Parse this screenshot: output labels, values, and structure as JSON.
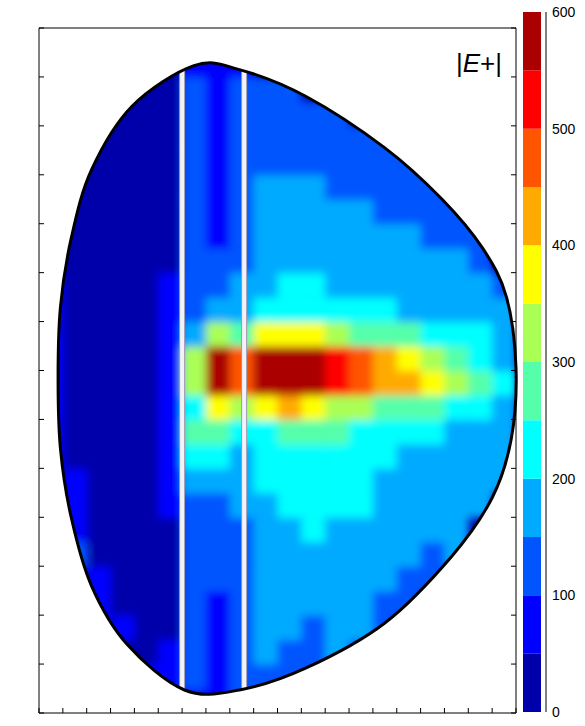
{
  "chart_data": {
    "type": "heatmap",
    "title": "|E+|",
    "tick_labels": false,
    "xlim": [
      0,
      20
    ],
    "xticks": [
      0,
      1,
      2,
      3,
      4,
      5,
      6,
      7,
      8,
      9,
      10,
      11,
      12,
      13,
      14,
      15,
      16,
      17,
      18,
      19,
      20
    ],
    "ylim": [
      0,
      14
    ],
    "yticks": [
      0,
      1,
      2,
      3,
      4,
      5,
      6,
      7,
      8,
      9,
      10,
      11,
      12,
      13,
      14
    ],
    "cells": {
      "x": [
        0,
        1,
        2,
        3,
        4,
        5,
        6,
        7,
        8,
        9,
        10,
        11,
        12,
        13,
        14,
        15,
        16,
        17,
        18,
        19,
        20
      ],
      "y": [
        0,
        0.5,
        1,
        1.5,
        2,
        2.5,
        3,
        3.5,
        4,
        4.5,
        5,
        5.5,
        6,
        6.5,
        7,
        7.5,
        8,
        8.5,
        9,
        9.5,
        10,
        10.5,
        11,
        11.5,
        12,
        12.5,
        13,
        13.5,
        14
      ],
      "values": [
        [
          null,
          null,
          null,
          null,
          null,
          60,
          90,
          80,
          100,
          130,
          null,
          null,
          null,
          null,
          null,
          null,
          null,
          null,
          null,
          null
        ],
        [
          null,
          null,
          null,
          null,
          50,
          50,
          100,
          80,
          110,
          140,
          130,
          120,
          null,
          null,
          null,
          null,
          null,
          null,
          null,
          null
        ],
        [
          null,
          null,
          null,
          40,
          45,
          50,
          100,
          80,
          120,
          150,
          140,
          130,
          150,
          140,
          null,
          null,
          null,
          null,
          null,
          null
        ],
        [
          null,
          null,
          null,
          60,
          40,
          45,
          110,
          90,
          130,
          160,
          150,
          140,
          160,
          150,
          130,
          null,
          null,
          null,
          null,
          null
        ],
        [
          null,
          null,
          80,
          40,
          40,
          45,
          110,
          90,
          120,
          170,
          160,
          150,
          170,
          160,
          140,
          130,
          null,
          null,
          null,
          null
        ],
        [
          null,
          null,
          90,
          40,
          40,
          45,
          110,
          100,
          130,
          160,
          180,
          170,
          180,
          170,
          150,
          140,
          130,
          null,
          null,
          null
        ],
        [
          null,
          100,
          40,
          40,
          40,
          45,
          120,
          100,
          140,
          170,
          190,
          180,
          190,
          180,
          160,
          150,
          140,
          150,
          null,
          null
        ],
        [
          null,
          90,
          40,
          35,
          40,
          45,
          120,
          110,
          140,
          180,
          190,
          200,
          190,
          190,
          170,
          160,
          150,
          160,
          null,
          null
        ],
        [
          null,
          80,
          40,
          35,
          40,
          50,
          130,
          120,
          150,
          190,
          200,
          210,
          200,
          200,
          180,
          170,
          160,
          170,
          150,
          null
        ],
        [
          null,
          70,
          40,
          35,
          40,
          50,
          150,
          150,
          160,
          200,
          220,
          220,
          210,
          210,
          190,
          180,
          170,
          170,
          160,
          150
        ],
        [
          60,
          40,
          35,
          35,
          40,
          50,
          200,
          220,
          180,
          210,
          230,
          230,
          220,
          220,
          200,
          190,
          180,
          170,
          170,
          150
        ],
        [
          50,
          40,
          35,
          35,
          40,
          50,
          280,
          280,
          200,
          230,
          260,
          260,
          250,
          240,
          220,
          210,
          200,
          190,
          180,
          160
        ],
        [
          50,
          40,
          35,
          35,
          40,
          60,
          200,
          350,
          300,
          380,
          400,
          370,
          330,
          300,
          280,
          260,
          250,
          230,
          210,
          180
        ],
        [
          50,
          40,
          35,
          35,
          40,
          70,
          320,
          650,
          450,
          650,
          650,
          600,
          520,
          470,
          430,
          400,
          360,
          300,
          250,
          200
        ],
        [
          50,
          40,
          35,
          35,
          40,
          70,
          320,
          650,
          450,
          650,
          650,
          580,
          500,
          450,
          420,
          380,
          340,
          290,
          240,
          190
        ],
        [
          50,
          40,
          35,
          35,
          40,
          60,
          150,
          300,
          280,
          350,
          380,
          350,
          310,
          290,
          270,
          250,
          240,
          220,
          200,
          170
        ],
        [
          50,
          40,
          35,
          35,
          40,
          50,
          120,
          150,
          180,
          220,
          240,
          230,
          220,
          210,
          200,
          190,
          180,
          170,
          160,
          150
        ],
        [
          55,
          40,
          35,
          35,
          40,
          50,
          110,
          110,
          150,
          190,
          200,
          200,
          190,
          180,
          170,
          170,
          160,
          160,
          150,
          140
        ],
        [
          null,
          40,
          35,
          35,
          40,
          45,
          100,
          100,
          130,
          170,
          180,
          180,
          170,
          170,
          160,
          160,
          150,
          150,
          140,
          null
        ],
        [
          null,
          40,
          35,
          35,
          40,
          45,
          100,
          95,
          130,
          160,
          170,
          170,
          160,
          160,
          150,
          150,
          140,
          140,
          130,
          null
        ],
        [
          null,
          40,
          35,
          35,
          40,
          45,
          100,
          90,
          120,
          150,
          160,
          160,
          150,
          150,
          140,
          140,
          130,
          130,
          null,
          null
        ],
        [
          null,
          40,
          35,
          35,
          40,
          45,
          100,
          90,
          120,
          150,
          150,
          150,
          140,
          140,
          130,
          130,
          120,
          null,
          null,
          null
        ],
        [
          null,
          null,
          35,
          35,
          40,
          45,
          100,
          90,
          110,
          140,
          140,
          140,
          130,
          130,
          120,
          120,
          null,
          null,
          null,
          null
        ],
        [
          null,
          null,
          35,
          35,
          40,
          45,
          100,
          90,
          110,
          130,
          130,
          130,
          120,
          120,
          110,
          null,
          null,
          null,
          null,
          null
        ],
        [
          null,
          null,
          null,
          35,
          40,
          45,
          100,
          90,
          100,
          120,
          120,
          110,
          100,
          null,
          null,
          null,
          null,
          null,
          null,
          null
        ],
        [
          null,
          null,
          null,
          null,
          40,
          45,
          100,
          90,
          100,
          110,
          100,
          null,
          null,
          null,
          null,
          null,
          null,
          null,
          null,
          null
        ],
        [
          null,
          null,
          null,
          null,
          null,
          45,
          90,
          80,
          90,
          null,
          null,
          null,
          null,
          null,
          null,
          null,
          null,
          null,
          null,
          null
        ],
        [
          null,
          null,
          null,
          null,
          null,
          null,
          null,
          null,
          null,
          null,
          null,
          null,
          null,
          null,
          null,
          null,
          null,
          null,
          null,
          null
        ]
      ]
    },
    "colorbar": {
      "range": [
        0,
        600
      ],
      "ticks": [
        0,
        100,
        200,
        300,
        400,
        500,
        600
      ]
    },
    "colors": [
      "#0000aa",
      "#0000ff",
      "#0055ff",
      "#00aaff",
      "#00ffff",
      "#55ffaa",
      "#aaff55",
      "#ffff00",
      "#ffaa00",
      "#ff5500",
      "#ff0000",
      "#aa0000"
    ],
    "boundary": {
      "x": [
        6.5,
        3.9,
        2.2,
        1.35,
        0.9,
        0.8,
        0.9,
        1.35,
        2.2,
        3.7,
        6.1,
        8.4,
        11.2,
        14.5,
        17.3,
        19.0,
        19.8,
        20.0,
        19.6,
        18.6,
        16.9,
        14.5,
        11.2,
        8.4
      ],
      "y": [
        13.23,
        12.4,
        11.1,
        9.7,
        8.3,
        6.85,
        5.4,
        4.0,
        2.6,
        1.4,
        0.47,
        0.47,
        0.92,
        1.84,
        3.2,
        4.4,
        5.6,
        7.05,
        8.5,
        9.5,
        10.5,
        11.55,
        12.6,
        13.15
      ]
    },
    "vlines": [
      6.0,
      8.6
    ]
  }
}
